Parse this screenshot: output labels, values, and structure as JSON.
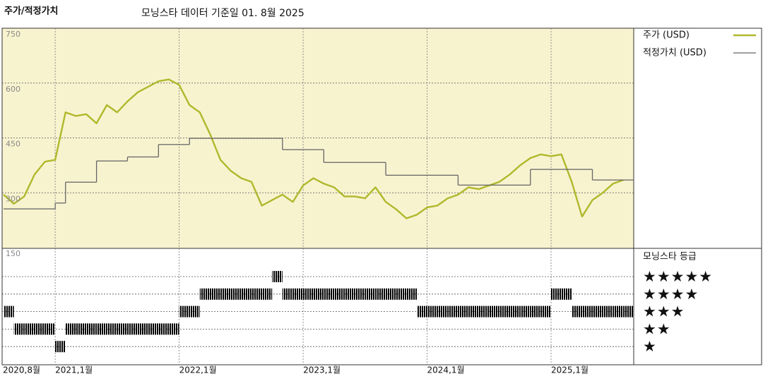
{
  "chart_data": {
    "type": "line",
    "title": "주가/적정가치",
    "subtitle": "모닝스타 데이터 기준일 01. 8월 2025",
    "x": [
      "2020-08",
      "2020-09",
      "2020-10",
      "2020-11",
      "2020-12",
      "2021-01",
      "2021-02",
      "2021-03",
      "2021-04",
      "2021-05",
      "2021-06",
      "2021-07",
      "2021-08",
      "2021-09",
      "2021-10",
      "2021-11",
      "2021-12",
      "2022-01",
      "2022-02",
      "2022-03",
      "2022-04",
      "2022-05",
      "2022-06",
      "2022-07",
      "2022-08",
      "2022-09",
      "2022-10",
      "2022-11",
      "2022-12",
      "2023-01",
      "2023-02",
      "2023-03",
      "2023-04",
      "2023-05",
      "2023-06",
      "2023-07",
      "2023-08",
      "2023-09",
      "2023-10",
      "2023-11",
      "2023-12",
      "2024-01",
      "2024-02",
      "2024-03",
      "2024-04",
      "2024-05",
      "2024-06",
      "2024-07",
      "2024-08",
      "2024-09",
      "2024-10",
      "2024-11",
      "2024-12",
      "2025-01",
      "2025-02",
      "2025-03",
      "2025-04",
      "2025-05",
      "2025-06",
      "2025-07",
      "2025-08"
    ],
    "xlim": [
      "2020-08",
      "2025-09"
    ],
    "xticks": [
      {
        "value": "2020-08",
        "label": "2020,8월"
      },
      {
        "value": "2021-01",
        "label": "2021,1월"
      },
      {
        "value": "2022-01",
        "label": "2022,1월"
      },
      {
        "value": "2023-01",
        "label": "2023,1월"
      },
      {
        "value": "2024-01",
        "label": "2024,1월"
      },
      {
        "value": "2025-01",
        "label": "2025,1월"
      }
    ],
    "ylim": [
      150,
      750
    ],
    "yticks": [
      150,
      300,
      450,
      600,
      750
    ],
    "grid": true,
    "series": [
      {
        "name": "주가 (USD)",
        "color": "#b0b82c",
        "values": [
          295,
          270,
          290,
          350,
          385,
          390,
          520,
          510,
          515,
          490,
          540,
          520,
          550,
          575,
          590,
          605,
          610,
          595,
          540,
          520,
          460,
          390,
          360,
          340,
          330,
          265,
          280,
          295,
          275,
          320,
          340,
          325,
          315,
          290,
          290,
          285,
          315,
          275,
          255,
          230,
          240,
          260,
          265,
          285,
          295,
          315,
          310,
          320,
          330,
          350,
          375,
          395,
          405,
          400,
          405,
          330,
          235,
          280,
          300,
          325,
          335
        ]
      },
      {
        "name": "적정가치 (USD)",
        "color": "#666666",
        "step": true,
        "values": [
          256,
          256,
          256,
          256,
          256,
          272,
          329,
          329,
          329,
          387,
          387,
          387,
          398,
          398,
          398,
          432,
          432,
          432,
          449,
          449,
          449,
          449,
          449,
          449,
          449,
          449,
          449,
          418,
          418,
          418,
          418,
          383,
          383,
          383,
          383,
          383,
          383,
          348,
          348,
          348,
          348,
          348,
          348,
          348,
          321,
          321,
          321,
          321,
          321,
          321,
          321,
          364,
          364,
          364,
          364,
          364,
          364,
          335,
          335,
          335,
          335
        ]
      }
    ],
    "rating": {
      "title": "모닝스타 등급",
      "color": "#1c1c1c",
      "top_color": "#3f8c6a",
      "levels": [
        {
          "value": 5,
          "label": "★★★★★"
        },
        {
          "value": 4,
          "label": "★★★★"
        },
        {
          "value": 3,
          "label": "★★★"
        },
        {
          "value": 2,
          "label": "★★"
        },
        {
          "value": 1,
          "label": "★"
        }
      ],
      "values": [
        3,
        2,
        2,
        2,
        2,
        1,
        2,
        2,
        2,
        2,
        2,
        2,
        2,
        2,
        2,
        2,
        2,
        3,
        3,
        4,
        4,
        4,
        4,
        4,
        4,
        4,
        5,
        4,
        4,
        4,
        4,
        4,
        4,
        4,
        4,
        4,
        4,
        4,
        4,
        4,
        3,
        3,
        3,
        3,
        3,
        3,
        3,
        3,
        3,
        3,
        3,
        3,
        3,
        4,
        4,
        3,
        3,
        3,
        3,
        3,
        3
      ]
    }
  }
}
